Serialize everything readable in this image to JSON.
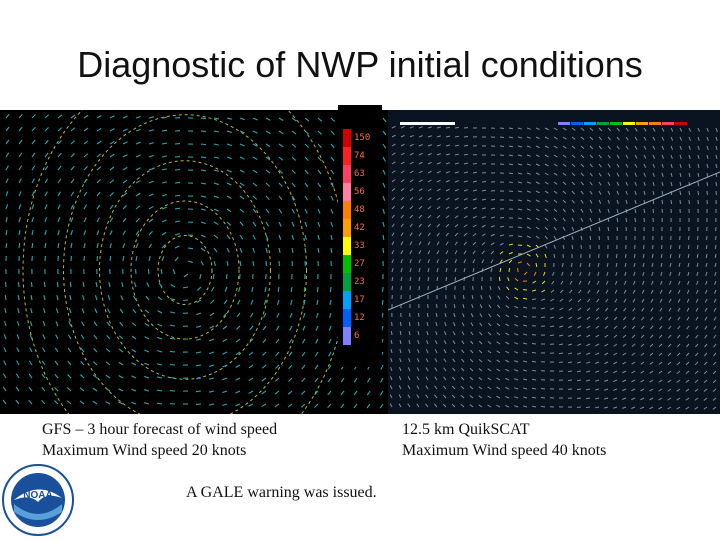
{
  "slide": {
    "title": "Diagnostic of NWP initial conditions",
    "left_caption": {
      "line1": "GFS – 3 hour forecast of wind speed",
      "line2": "Maximum Wind speed 20 knots"
    },
    "right_caption": {
      "line1": "12.5 km QuikSCAT",
      "line2": "Maximum Wind speed 40 knots"
    },
    "warning": "A GALE warning was issued.",
    "logo_text": "NOAA"
  },
  "colorbar": {
    "levels": [
      {
        "label": "150",
        "color": "#d00000"
      },
      {
        "label": "74",
        "color": "#ff2020"
      },
      {
        "label": "63",
        "color": "#ff4060"
      },
      {
        "label": "56",
        "color": "#ff80a0"
      },
      {
        "label": "48",
        "color": "#ff8000"
      },
      {
        "label": "42",
        "color": "#ffa000"
      },
      {
        "label": "33",
        "color": "#ffff00"
      },
      {
        "label": "27",
        "color": "#00c000"
      },
      {
        "label": "23",
        "color": "#00a040"
      },
      {
        "label": "17",
        "color": "#00a0ff"
      },
      {
        "label": "12",
        "color": "#0060ff"
      },
      {
        "label": "6",
        "color": "#8080ff"
      }
    ]
  },
  "colors": {
    "gfs_barbs": "#2aa8b0",
    "gfs_contours": "#d8d840",
    "scat_barbs": "#7a8c9a",
    "scat_swath": "#9ab0c0",
    "noaa_blue": "#1a4f9c",
    "noaa_gull": "#ffffff"
  },
  "panels": {
    "gfs": {
      "name": "gfs-forecast-panel"
    },
    "quikscat": {
      "name": "quikscat-panel"
    }
  }
}
